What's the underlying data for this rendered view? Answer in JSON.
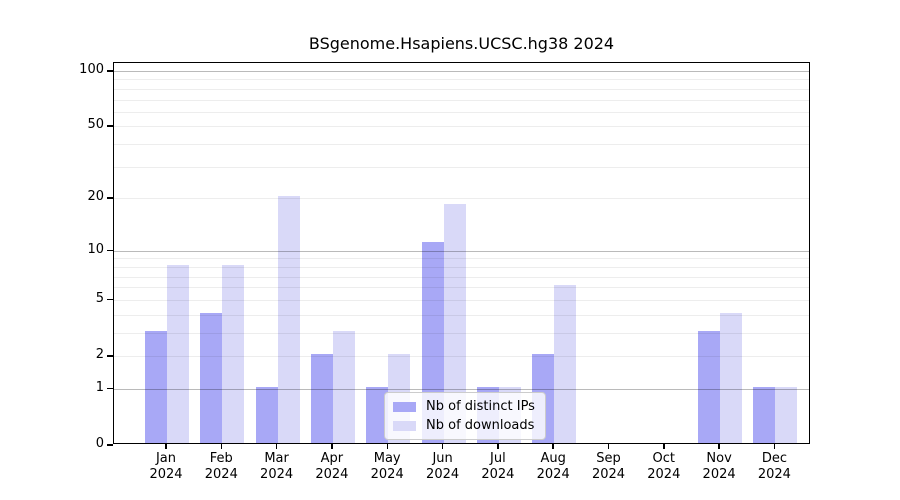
{
  "chart_data": {
    "type": "bar",
    "title": "BSgenome.Hsapiens.UCSC.hg38 2024",
    "categories": [
      "Jan",
      "Feb",
      "Mar",
      "Apr",
      "May",
      "Jun",
      "Jul",
      "Aug",
      "Sep",
      "Oct",
      "Nov",
      "Dec"
    ],
    "category_year": "2024",
    "series": [
      {
        "name": "Nb of distinct IPs",
        "color": "#a8a8f6",
        "values": [
          3,
          4,
          1,
          2,
          1,
          11,
          1,
          2,
          0,
          0,
          3,
          1
        ]
      },
      {
        "name": "Nb of downloads",
        "color": "#d9d9f8",
        "values": [
          8,
          8,
          20,
          3,
          2,
          18,
          1,
          6,
          0,
          0,
          4,
          1
        ]
      }
    ],
    "y_axis": {
      "scale": "log1p",
      "tick_values": [
        0,
        1,
        2,
        5,
        10,
        20,
        50,
        100
      ],
      "major_gridlines": [
        1,
        10,
        100
      ],
      "minor_gridlines": [
        2,
        3,
        4,
        5,
        6,
        7,
        8,
        9,
        20,
        30,
        40,
        50,
        60,
        70,
        80,
        90
      ],
      "ylim": [
        0,
        110
      ],
      "grid": "on"
    },
    "legend_position": "lower center",
    "xlabel": "",
    "ylabel": ""
  },
  "colors": {
    "bar_ips": "#a8a8f6",
    "bar_downloads": "#d9d9f8",
    "axis": "#000000",
    "legend_border": "#cccccc"
  }
}
